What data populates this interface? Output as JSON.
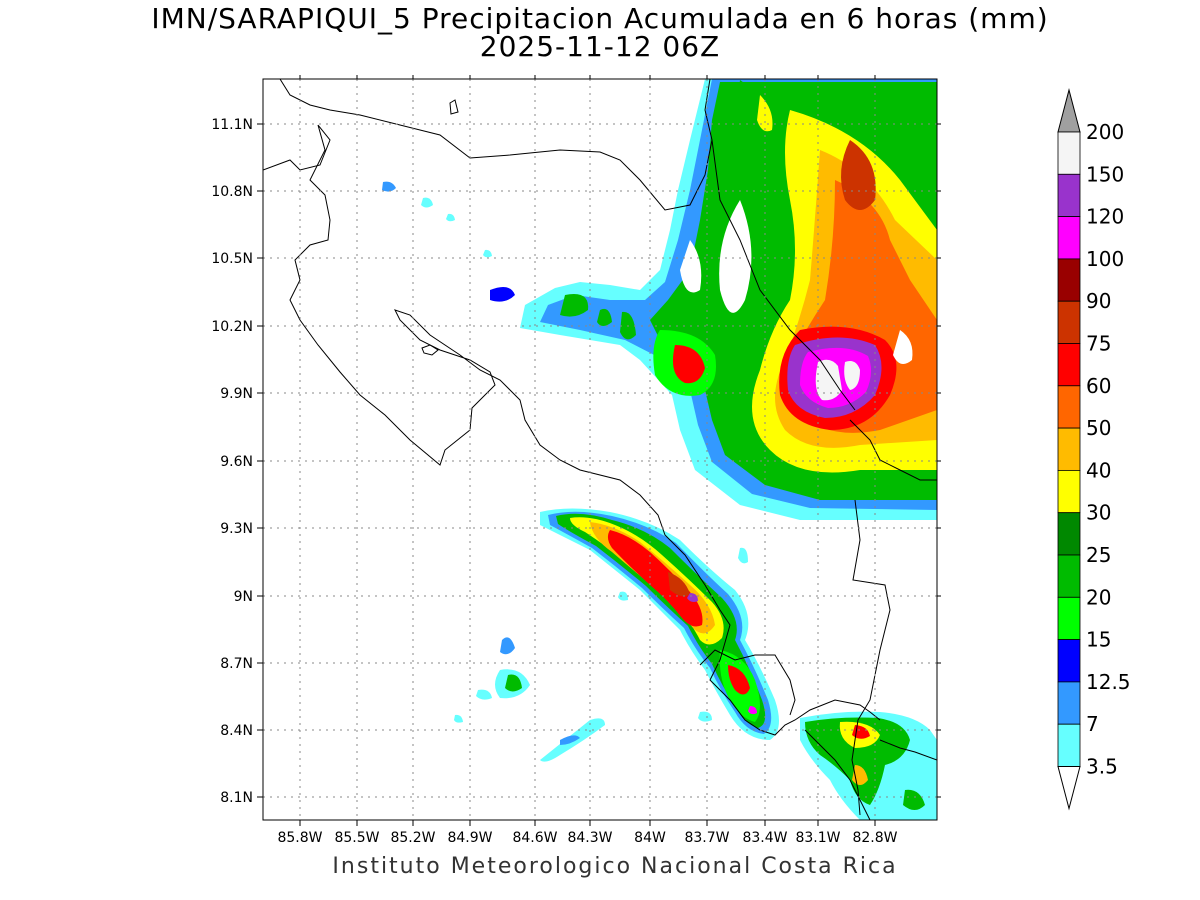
{
  "title": {
    "line1": "IMN/SARAPIQUI_5 Precipitacion Acumulada en 6 horas (mm)",
    "line2": "2025-11-12 06Z"
  },
  "credit": "Instituto Meteorologico Nacional Costa Rica",
  "map": {
    "lon_range": [
      -86.0,
      -83.0
    ],
    "lat_range": [
      8.0,
      11.3
    ],
    "grid": true,
    "x_ticks": [
      "85.8W",
      "85.5W",
      "85.2W",
      "84.9W",
      "84.6W",
      "84.3W",
      "84W",
      "83.7W",
      "83.4W",
      "83.1W",
      "82.8W"
    ],
    "y_ticks": [
      "11.1N",
      "10.8N",
      "10.5N",
      "10.2N",
      "9.9N",
      "9.6N",
      "9.3N",
      "9N",
      "8.7N",
      "8.4N",
      "8.1N"
    ]
  },
  "colorbar": {
    "levels": [
      "200",
      "150",
      "120",
      "100",
      "90",
      "75",
      "60",
      "50",
      "40",
      "30",
      "25",
      "20",
      "15",
      "12.5",
      "7",
      "3.5"
    ],
    "colors": [
      "#a0a0a0",
      "#f5f5f5",
      "#9933cc",
      "#ff00ff",
      "#990000",
      "#cc3300",
      "#ff0000",
      "#ff6600",
      "#ffbb00",
      "#ffff00",
      "#008800",
      "#00bb00",
      "#00ff00",
      "#0000ff",
      "#3399ff",
      "#66ffff",
      "#ffffff"
    ]
  },
  "colors": {
    "c1": "#66ffff",
    "c2": "#3399ff",
    "c3": "#0000ff",
    "c4": "#00ff00",
    "c5": "#00bb00",
    "c6": "#008800",
    "c7": "#ffff00",
    "c8": "#ffbb00",
    "c9": "#ff6600",
    "c10": "#ff0000",
    "c11": "#cc3300",
    "c12": "#990000",
    "c13": "#ff00ff",
    "c14": "#9933cc",
    "c15": "#f5f5f5"
  }
}
